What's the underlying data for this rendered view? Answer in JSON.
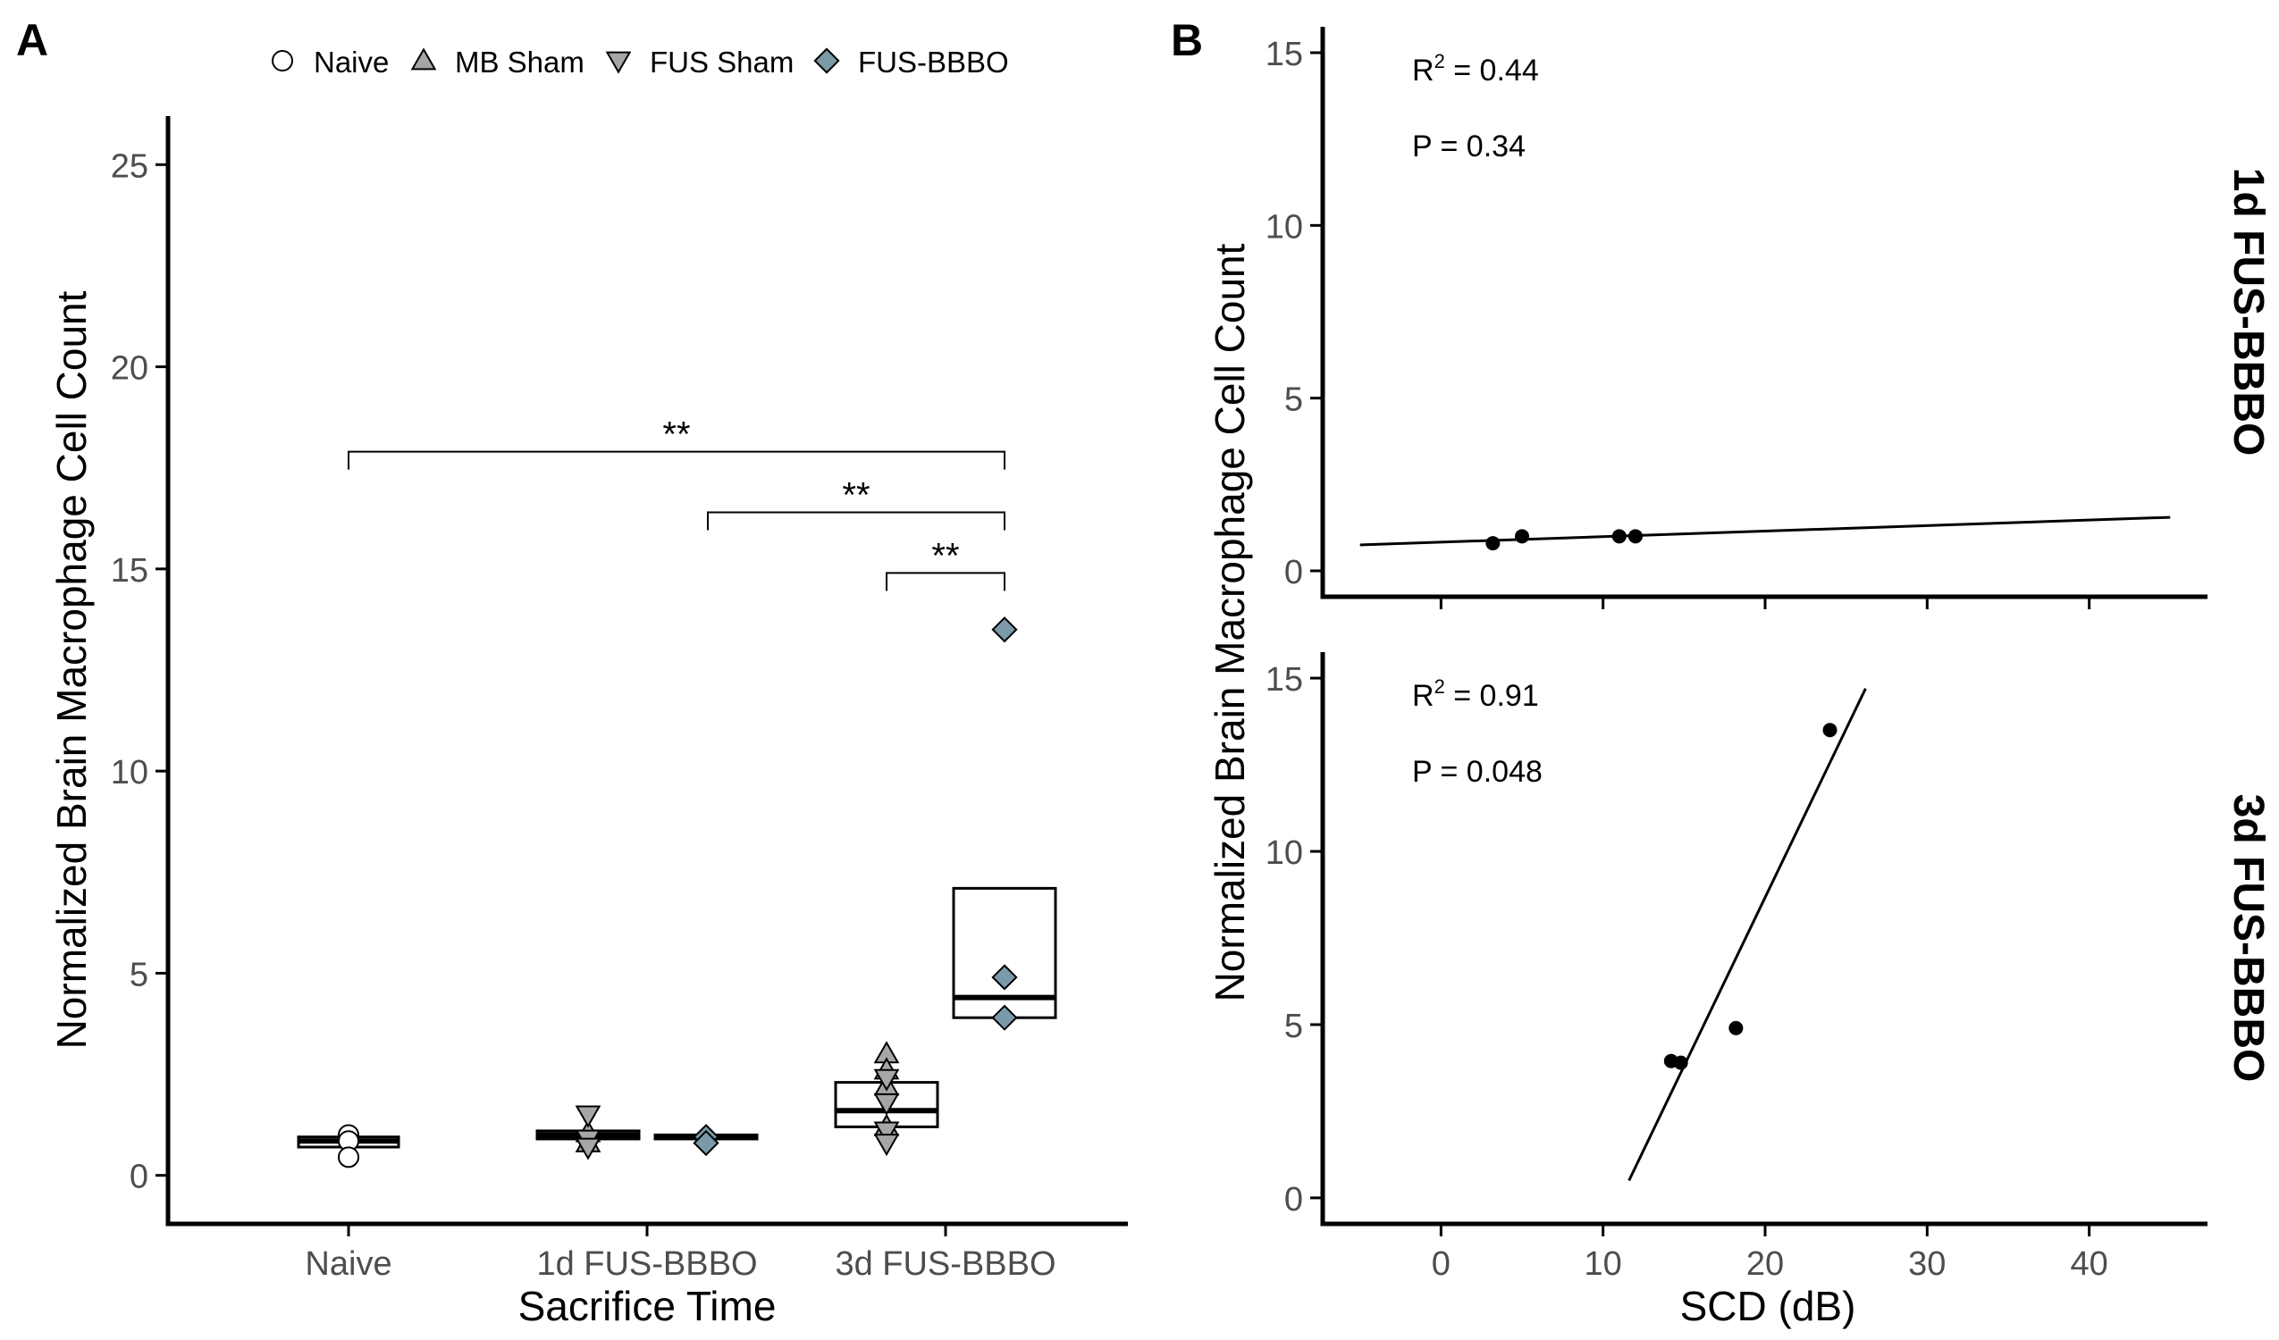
{
  "legend": {
    "items": [
      {
        "label": "Naive",
        "shape": "circle-icon",
        "fill": "#ffffff"
      },
      {
        "label": "MB Sham",
        "shape": "triangle-up-icon",
        "fill": "#a6a6a6"
      },
      {
        "label": "FUS Sham",
        "shape": "triangle-down-icon",
        "fill": "#a6a6a6"
      },
      {
        "label": "FUS-BBBO",
        "shape": "diamond-icon",
        "fill": "#7b9aa8"
      }
    ]
  },
  "colors": {
    "naive": "#ffffff",
    "sham": "#a6a6a6",
    "fusbbbo": "#7b9aa8",
    "axis": "#000000",
    "text": "#4d4d4d"
  },
  "chart_data": [
    {
      "panel": "A",
      "type": "box",
      "xlabel": "Sacrifice Time",
      "ylabel": "Normalized Brain Macrophage Cell Count",
      "categories": [
        "Naive",
        "1d FUS-BBBO",
        "3d FUS-BBBO"
      ],
      "ylim": [
        -1.2,
        26.2
      ],
      "yticks": [
        0,
        5,
        10,
        15,
        20,
        25
      ],
      "boxes": [
        {
          "category": "Naive",
          "group": "Naive",
          "q1": 0.7,
          "median": 0.85,
          "q3": 0.95
        },
        {
          "category": "1d FUS-BBBO",
          "group": "Sham",
          "q1": 0.9,
          "median": 1.0,
          "q3": 1.1
        },
        {
          "category": "1d FUS-BBBO",
          "group": "FUS-BBBO",
          "q1": 0.9,
          "median": 0.95,
          "q3": 1.0
        },
        {
          "category": "3d FUS-BBBO",
          "group": "Sham",
          "q1": 1.2,
          "median": 1.6,
          "q3": 2.3
        },
        {
          "category": "3d FUS-BBBO",
          "group": "FUS-BBBO",
          "q1": 3.9,
          "median": 4.4,
          "q3": 7.1
        }
      ],
      "points": [
        {
          "category": "Naive",
          "group": "Naive",
          "shape": "circle",
          "values": [
            1.0,
            0.85,
            0.45
          ]
        },
        {
          "category": "1d FUS-BBBO",
          "group": "MB Sham",
          "shape": "triangle-up",
          "values": [
            1.05,
            0.8
          ]
        },
        {
          "category": "1d FUS-BBBO",
          "group": "FUS Sham",
          "shape": "triangle-down",
          "values": [
            1.5,
            0.9,
            0.7
          ]
        },
        {
          "category": "1d FUS-BBBO",
          "group": "FUS-BBBO",
          "shape": "diamond",
          "values": [
            0.95,
            0.8
          ]
        },
        {
          "category": "3d FUS-BBBO",
          "group": "MB Sham",
          "shape": "triangle-up",
          "values": [
            3.0,
            2.6,
            2.2,
            1.2
          ]
        },
        {
          "category": "3d FUS-BBBO",
          "group": "FUS Sham",
          "shape": "triangle-down",
          "values": [
            2.4,
            1.8,
            1.1,
            0.8
          ]
        },
        {
          "category": "3d FUS-BBBO",
          "group": "FUS-BBBO",
          "shape": "diamond",
          "values": [
            13.5,
            4.9,
            3.9
          ]
        }
      ],
      "significance": [
        {
          "label": "**",
          "from": "Naive",
          "to": "3d FUS-BBBO",
          "y": 17.9
        },
        {
          "label": "**",
          "from": "1d FUS-BBBO",
          "to": "3d FUS-BBBO",
          "y": 16.4
        },
        {
          "label": "**",
          "from": "3d FUS-BBBO",
          "to": "3d FUS-BBBO",
          "y": 14.9
        }
      ]
    },
    {
      "panel": "B",
      "type": "scatter",
      "facet": "1d FUS-BBBO",
      "ylabel": "Normalized Brain Macrophage Cell Count",
      "xlim": [
        -7.3,
        47.3
      ],
      "ylim": [
        -0.75,
        15.75
      ],
      "xticks": [
        0,
        10,
        20,
        30,
        40
      ],
      "yticks": [
        0,
        5,
        10,
        15
      ],
      "x": [
        3.2,
        5.0,
        11.0,
        12.0
      ],
      "y": [
        0.8,
        1.0,
        1.0,
        1.0
      ],
      "fit": {
        "x": [
          -5.0,
          45.0
        ],
        "y": [
          0.75,
          1.55
        ]
      },
      "annotations": {
        "r2_value": "= 0.44",
        "p_text": "P = 0.34"
      }
    },
    {
      "panel": "B",
      "type": "scatter",
      "facet": "3d FUS-BBBO",
      "xlabel": "SCD (dB)",
      "ylabel": "Normalized Brain Macrophage Cell Count",
      "xlim": [
        -7.3,
        47.3
      ],
      "ylim": [
        -0.75,
        15.75
      ],
      "xticks": [
        0,
        10,
        20,
        30,
        40
      ],
      "yticks": [
        0,
        5,
        10,
        15
      ],
      "x": [
        14.2,
        14.8,
        18.2,
        24.0
      ],
      "y": [
        3.95,
        3.9,
        4.9,
        13.5
      ],
      "fit": {
        "x": [
          11.6,
          26.2
        ],
        "y": [
          0.5,
          14.7
        ]
      },
      "annotations": {
        "r2_value": "= 0.91",
        "p_text": "P = 0.048"
      }
    }
  ],
  "panel_labels": {
    "a": "A",
    "b": "B"
  },
  "axis_symbol": {
    "r": "R",
    "sup": "2"
  }
}
